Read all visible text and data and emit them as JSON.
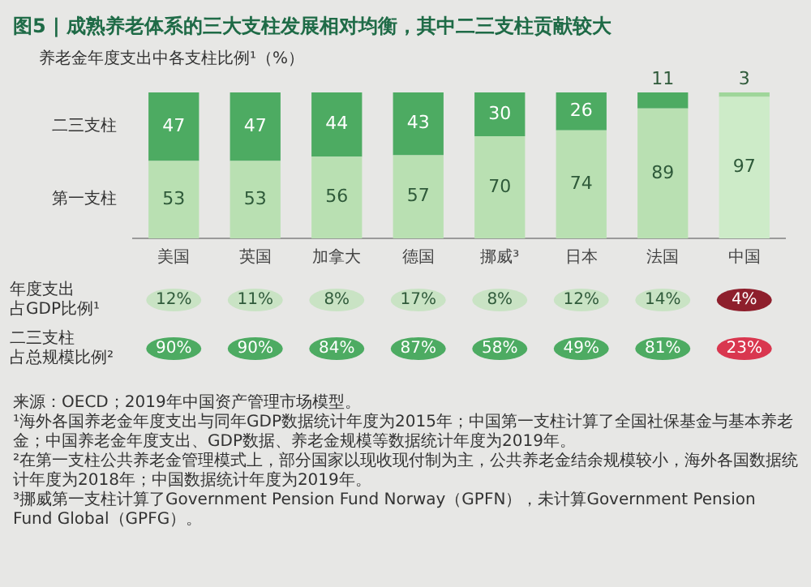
{
  "chart_data": {
    "type": "bar",
    "stacked": true,
    "title": "图5 | 成熟养老体系的三大支柱发展相对均衡，其中二三支柱贡献较大",
    "subtitle": "养老金年度支出中各支柱比例¹（%）",
    "categories": [
      "美国",
      "英国",
      "加拿大",
      "德国",
      "挪威³",
      "日本",
      "法国",
      "中国"
    ],
    "series": [
      {
        "name": "第一支柱",
        "colors": [
          "#b9e0b2",
          "#b9e0b2",
          "#b9e0b2",
          "#b9e0b2",
          "#b9e0b2",
          "#b9e0b2",
          "#b9e0b2",
          "#cdebc8"
        ],
        "values": [
          53,
          53,
          56,
          57,
          70,
          74,
          89,
          97
        ]
      },
      {
        "name": "二三支柱",
        "colors": [
          "#4dab62",
          "#4dab62",
          "#4dab62",
          "#4dab62",
          "#4dab62",
          "#4dab62",
          "#4dab62",
          "#9fd69a"
        ],
        "values": [
          47,
          47,
          44,
          43,
          30,
          26,
          11,
          3
        ]
      }
    ],
    "ylim": [
      0,
      100
    ],
    "tick_labels": "x",
    "data_labels": true,
    "annotations": [
      "年度支出占GDP比例¹",
      "12%",
      "11%",
      "8%",
      "17%",
      "8%",
      "12%",
      "14%",
      "4%",
      "二三支柱占总规模比例²",
      "90%",
      "90%",
      "84%",
      "87%",
      "58%",
      "49%",
      "81%",
      "23%",
      "来源：OECD；2019年中国资产管理市场模型。",
      "¹海外各国养老金年度支出与同年GDP数据统计年度为2015年；中国第一支柱计算了全国社保基金与基本养老金；中国养老金年度支出、GDP数据、养老金规模等数据统计年度为2019年。",
      "²在第一支柱公共养老金管理模式上，部分国家以现收现付制为主，公共养老金结余规模较小，海外各国数据统计年度为2018年；中国数据统计年度为2019年。",
      "³挪威第一支柱计算了Government Pension Fund Norway（GPFN），未计算Government Pension Fund Global（GPFG）。"
    ]
  }
}
